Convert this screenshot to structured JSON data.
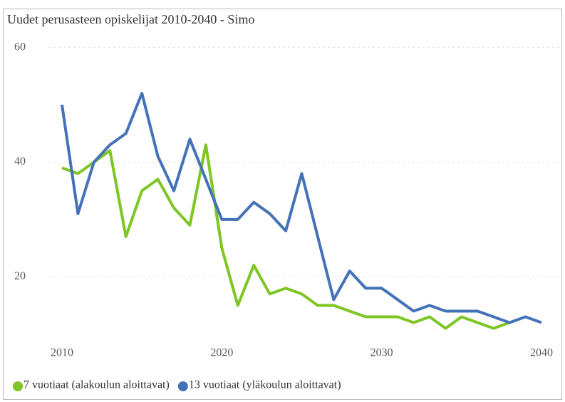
{
  "chart_data": {
    "type": "line",
    "title": "Uudet perusasteen opiskelijat 2010-2040 - Simo",
    "x": [
      2010,
      2011,
      2012,
      2013,
      2014,
      2015,
      2016,
      2017,
      2018,
      2019,
      2020,
      2021,
      2022,
      2023,
      2024,
      2025,
      2026,
      2027,
      2028,
      2029,
      2030,
      2031,
      2032,
      2033,
      2034,
      2035,
      2036,
      2037,
      2038,
      2039,
      2040
    ],
    "series": [
      {
        "name": "7 vuotiaat (alakoulun aloittavat)",
        "color": "#7dc623",
        "values": [
          39,
          38,
          40,
          42,
          27,
          35,
          37,
          32,
          29,
          43,
          25,
          15,
          22,
          17,
          18,
          17,
          15,
          15,
          14,
          13,
          13,
          13,
          12,
          13,
          11,
          13,
          12,
          11,
          12,
          null,
          null
        ]
      },
      {
        "name": "13 vuotiaat (yläkoulun aloittavat)",
        "color": "#4472b8",
        "values": [
          50,
          31,
          40,
          43,
          45,
          52,
          41,
          35,
          44,
          37,
          30,
          30,
          33,
          31,
          28,
          38,
          27,
          16,
          21,
          18,
          18,
          16,
          14,
          15,
          14,
          14,
          14,
          13,
          12,
          13,
          12
        ]
      }
    ],
    "xlim": [
      2010,
      2040
    ],
    "xticks": [
      2010,
      2020,
      2030,
      2040
    ],
    "ylim": [
      9,
      62
    ],
    "yticks": [
      20,
      40,
      60
    ],
    "grid": true
  }
}
